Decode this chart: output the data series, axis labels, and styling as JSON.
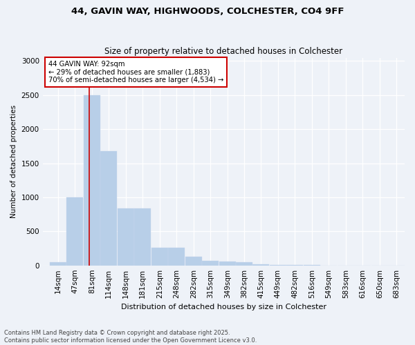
{
  "title_line1": "44, GAVIN WAY, HIGHWOODS, COLCHESTER, CO4 9FF",
  "title_line2": "Size of property relative to detached houses in Colchester",
  "xlabel": "Distribution of detached houses by size in Colchester",
  "ylabel": "Number of detached properties",
  "footnote": "Contains HM Land Registry data © Crown copyright and database right 2025.\nContains public sector information licensed under the Open Government Licence v3.0.",
  "annotation_title": "44 GAVIN WAY: 92sqm",
  "annotation_line2": "← 29% of detached houses are smaller (1,883)",
  "annotation_line3": "70% of semi-detached houses are larger (4,534) →",
  "property_size_x": 92,
  "bar_color": "#b8cfe8",
  "bar_edge_color": "#c8d8ee",
  "marker_color": "#cc0000",
  "background_color": "#eef2f8",
  "annotation_box_color": "#ffffff",
  "annotation_box_edge": "#cc0000",
  "categories": [
    "14sqm",
    "47sqm",
    "81sqm",
    "114sqm",
    "148sqm",
    "181sqm",
    "215sqm",
    "248sqm",
    "282sqm",
    "315sqm",
    "349sqm",
    "382sqm",
    "415sqm",
    "449sqm",
    "482sqm",
    "516sqm",
    "549sqm",
    "583sqm",
    "616sqm",
    "650sqm",
    "683sqm"
  ],
  "bin_left": [
    14,
    47,
    81,
    114,
    148,
    181,
    215,
    248,
    282,
    315,
    349,
    382,
    415,
    449,
    482,
    516,
    549,
    583,
    616,
    650,
    683
  ],
  "bin_width": 33,
  "values": [
    50,
    1000,
    2500,
    1680,
    840,
    840,
    260,
    260,
    130,
    70,
    55,
    45,
    20,
    8,
    3,
    2,
    1,
    0,
    0,
    0,
    0
  ],
  "ylim": [
    0,
    3050
  ],
  "yticks": [
    0,
    500,
    1000,
    1500,
    2000,
    2500,
    3000
  ],
  "xlim_left": 0,
  "xlim_right": 716
}
